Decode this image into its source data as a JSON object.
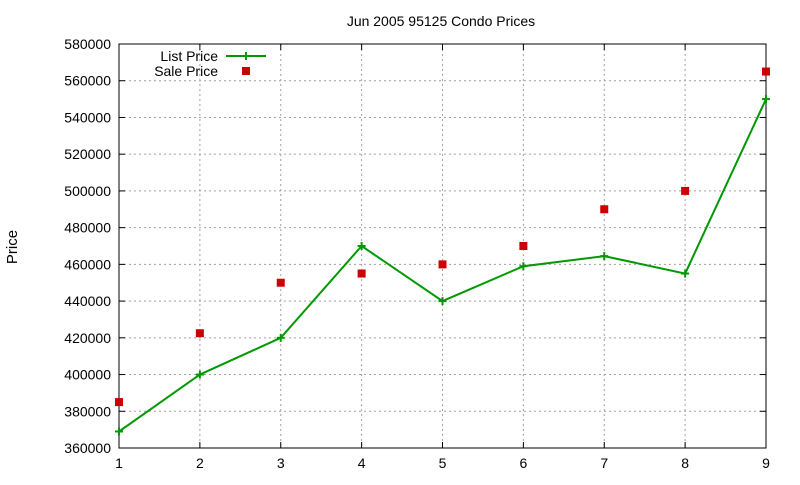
{
  "chart_data": {
    "type": "line",
    "title": "Jun 2005 95125 Condo Prices",
    "xlabel": "",
    "ylabel": "Price",
    "xlim": [
      1,
      9
    ],
    "ylim": [
      360000,
      580000
    ],
    "x_ticks": [
      "1",
      "2",
      "3",
      "4",
      "5",
      "6",
      "7",
      "8",
      "9"
    ],
    "y_ticks": [
      "360000",
      "380000",
      "400000",
      "420000",
      "440000",
      "460000",
      "480000",
      "500000",
      "520000",
      "540000",
      "560000",
      "580000"
    ],
    "grid": true,
    "legend_position": "top-left",
    "series": [
      {
        "name": "List Price",
        "style": "lines-and-plus-points",
        "color": "#009900",
        "x": [
          1,
          2,
          3,
          4,
          5,
          6,
          7,
          8,
          9
        ],
        "y": [
          369000,
          400000,
          420000,
          470000,
          440000,
          459000,
          464500,
          455000,
          550000
        ]
      },
      {
        "name": "Sale Price",
        "style": "square-points",
        "color": "#cc0000",
        "x": [
          1,
          2,
          3,
          4,
          5,
          6,
          7,
          8,
          9
        ],
        "y": [
          385000,
          422500,
          450000,
          455000,
          460000,
          470000,
          490000,
          500000,
          565000
        ]
      }
    ]
  }
}
